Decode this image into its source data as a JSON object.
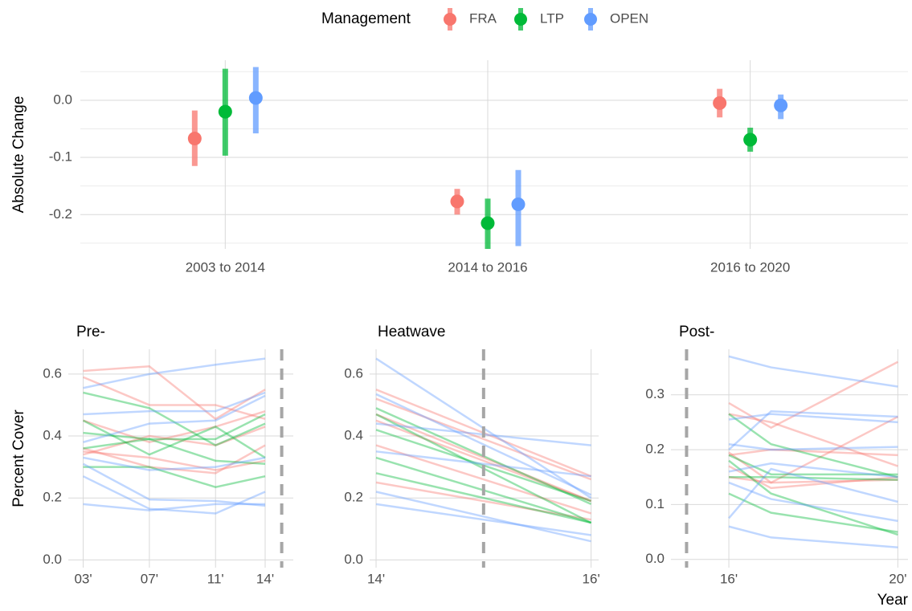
{
  "chart_data": [
    {
      "type": "pointrange",
      "y_label": "Absolute Change",
      "legend_title": "Management",
      "legend_position": "top",
      "categories": [
        "2003 to 2014",
        "2014 to 2016",
        "2016 to 2020"
      ],
      "ylim": [
        -0.26,
        0.07
      ],
      "yticks": [
        {
          "value": 0,
          "label": "0.0"
        },
        -0.1,
        -0.2
      ],
      "yminorticks": [
        0.05,
        -0.05,
        -0.15,
        -0.25
      ],
      "grid": true,
      "series": [
        {
          "name": "FRA",
          "color": "#f8766d",
          "values": [
            -0.067,
            -0.177,
            -0.005
          ],
          "lower": [
            -0.115,
            -0.2,
            -0.03
          ],
          "upper": [
            -0.018,
            -0.155,
            0.02
          ]
        },
        {
          "name": "LTP",
          "color": "#00ba38",
          "values": [
            -0.02,
            -0.215,
            -0.069
          ],
          "lower": [
            -0.097,
            -0.26,
            -0.09
          ],
          "upper": [
            0.055,
            -0.172,
            -0.048
          ]
        },
        {
          "name": "OPEN",
          "color": "#619cff",
          "values": [
            0.004,
            -0.182,
            -0.009
          ],
          "lower": [
            -0.058,
            -0.255,
            -0.033
          ],
          "upper": [
            0.058,
            -0.122,
            0.01
          ]
        }
      ]
    },
    {
      "type": "line",
      "title": "Pre-",
      "y_label": "Percent Cover",
      "x": [
        2003,
        2007,
        2011,
        2014
      ],
      "xlim": [
        2002.1,
        2015.7
      ],
      "xticks": [
        {
          "value": 2003,
          "label": "03'"
        },
        {
          "value": 2007,
          "label": "07'"
        },
        {
          "value": 2011,
          "label": "11'"
        },
        {
          "value": 2014,
          "label": "14'"
        }
      ],
      "ylim": [
        -0.025,
        0.68
      ],
      "yticks": [
        {
          "value": 0,
          "label": "0.0"
        },
        0.2,
        0.4,
        0.6
      ],
      "vline": 2015,
      "grid": true,
      "series": [
        {
          "color": "#f8766d",
          "values": [
            0.61,
            0.625,
            0.455,
            0.55
          ]
        },
        {
          "color": "#f8766d",
          "values": [
            0.59,
            0.5,
            0.5,
            0.455
          ]
        },
        {
          "color": "#f8766d",
          "values": [
            0.36,
            0.3,
            0.28,
            0.37
          ]
        },
        {
          "color": "#f8766d",
          "values": [
            0.35,
            0.33,
            0.29,
            0.32
          ]
        },
        {
          "color": "#f8766d",
          "values": [
            0.34,
            0.4,
            0.37,
            0.43
          ]
        },
        {
          "color": "#f8766d",
          "values": [
            0.45,
            0.38,
            0.43,
            0.48
          ]
        },
        {
          "color": "#00ba38",
          "values": [
            0.54,
            0.49,
            0.37,
            0.44
          ]
        },
        {
          "color": "#00ba38",
          "values": [
            0.45,
            0.34,
            0.43,
            0.33
          ]
        },
        {
          "color": "#00ba38",
          "values": [
            0.41,
            0.39,
            0.39,
            0.47
          ]
        },
        {
          "color": "#00ba38",
          "values": [
            0.36,
            0.39,
            0.32,
            0.31
          ]
        },
        {
          "color": "#00ba38",
          "values": [
            0.3,
            0.3,
            0.235,
            0.27
          ]
        },
        {
          "color": "#619cff",
          "values": [
            0.555,
            0.6,
            0.63,
            0.65
          ]
        },
        {
          "color": "#619cff",
          "values": [
            0.47,
            0.48,
            0.48,
            0.54
          ]
        },
        {
          "color": "#619cff",
          "values": [
            0.38,
            0.44,
            0.45,
            0.53
          ]
        },
        {
          "color": "#619cff",
          "values": [
            0.31,
            0.195,
            0.19,
            0.175
          ]
        },
        {
          "color": "#619cff",
          "values": [
            0.27,
            0.165,
            0.15,
            0.22
          ]
        },
        {
          "color": "#619cff",
          "values": [
            0.18,
            0.16,
            0.18,
            0.18
          ]
        },
        {
          "color": "#619cff",
          "values": [
            0.33,
            0.29,
            0.3,
            0.33
          ]
        }
      ]
    },
    {
      "type": "line",
      "title": "Heatwave",
      "x": [
        2014,
        2016
      ],
      "xlim": [
        2013.94,
        2016.07
      ],
      "xticks": [
        {
          "value": 2014,
          "label": "14'"
        },
        {
          "value": 2016,
          "label": "16'"
        }
      ],
      "ylim": [
        -0.025,
        0.68
      ],
      "yticks": [
        {
          "value": 0,
          "label": "0.0"
        },
        0.2,
        0.4,
        0.6
      ],
      "vline": 2015,
      "grid": true,
      "series": [
        {
          "color": "#f8766d",
          "values": [
            0.55,
            0.27
          ]
        },
        {
          "color": "#f8766d",
          "values": [
            0.52,
            0.26
          ]
        },
        {
          "color": "#f8766d",
          "values": [
            0.47,
            0.19
          ]
        },
        {
          "color": "#f8766d",
          "values": [
            0.37,
            0.15
          ]
        },
        {
          "color": "#f8766d",
          "values": [
            0.25,
            0.13
          ]
        },
        {
          "color": "#f8766d",
          "values": [
            0.45,
            0.19
          ]
        },
        {
          "color": "#00ba38",
          "values": [
            0.49,
            0.18
          ]
        },
        {
          "color": "#00ba38",
          "values": [
            0.47,
            0.12
          ]
        },
        {
          "color": "#00ba38",
          "values": [
            0.42,
            0.19
          ]
        },
        {
          "color": "#00ba38",
          "values": [
            0.33,
            0.12
          ]
        },
        {
          "color": "#00ba38",
          "values": [
            0.28,
            0.12
          ]
        },
        {
          "color": "#619cff",
          "values": [
            0.65,
            0.2
          ]
        },
        {
          "color": "#619cff",
          "values": [
            0.535,
            0.21
          ]
        },
        {
          "color": "#619cff",
          "values": [
            0.44,
            0.37
          ]
        },
        {
          "color": "#619cff",
          "values": [
            0.22,
            0.06
          ]
        },
        {
          "color": "#619cff",
          "values": [
            0.18,
            0.08
          ]
        },
        {
          "color": "#619cff",
          "values": [
            0.35,
            0.27
          ]
        }
      ]
    },
    {
      "type": "line",
      "title": "Post-",
      "x_label": "Year",
      "x": [
        2016,
        2017,
        2020
      ],
      "xlim": [
        2014.63,
        2020.24
      ],
      "xticks": [
        {
          "value": 2016,
          "label": "16'"
        },
        {
          "value": 2020,
          "label": "20'"
        }
      ],
      "ylim": [
        -0.015,
        0.383
      ],
      "yticks": [
        {
          "value": 0,
          "label": "0.0"
        },
        0.1,
        0.2,
        0.3
      ],
      "vline": 2015,
      "grid": true,
      "series": [
        {
          "color": "#f8766d",
          "values": [
            0.285,
            0.24,
            0.36
          ]
        },
        {
          "color": "#f8766d",
          "values": [
            0.265,
            0.25,
            0.17
          ]
        },
        {
          "color": "#f8766d",
          "values": [
            0.19,
            0.2,
            0.19
          ]
        },
        {
          "color": "#f8766d",
          "values": [
            0.17,
            0.13,
            0.15
          ]
        },
        {
          "color": "#f8766d",
          "values": [
            0.15,
            0.14,
            0.145
          ]
        },
        {
          "color": "#f8766d",
          "values": [
            0.195,
            0.14,
            0.26
          ]
        },
        {
          "color": "#00ba38",
          "values": [
            0.265,
            0.21,
            0.15
          ]
        },
        {
          "color": "#00ba38",
          "values": [
            0.19,
            0.155,
            0.155
          ]
        },
        {
          "color": "#00ba38",
          "values": [
            0.18,
            0.12,
            0.045
          ]
        },
        {
          "color": "#00ba38",
          "values": [
            0.12,
            0.085,
            0.05
          ]
        },
        {
          "color": "#00ba38",
          "values": [
            0.15,
            0.15,
            0.145
          ]
        },
        {
          "color": "#619cff",
          "values": [
            0.37,
            0.35,
            0.315
          ]
        },
        {
          "color": "#619cff",
          "values": [
            0.255,
            0.265,
            0.25
          ]
        },
        {
          "color": "#619cff",
          "values": [
            0.2,
            0.27,
            0.26
          ]
        },
        {
          "color": "#619cff",
          "values": [
            0.21,
            0.2,
            0.205
          ]
        },
        {
          "color": "#619cff",
          "values": [
            0.075,
            0.165,
            0.105
          ]
        },
        {
          "color": "#619cff",
          "values": [
            0.06,
            0.04,
            0.022
          ]
        },
        {
          "color": "#619cff",
          "values": [
            0.16,
            0.175,
            0.15
          ]
        },
        {
          "color": "#619cff",
          "values": [
            0.14,
            0.11,
            0.07
          ]
        }
      ]
    }
  ]
}
